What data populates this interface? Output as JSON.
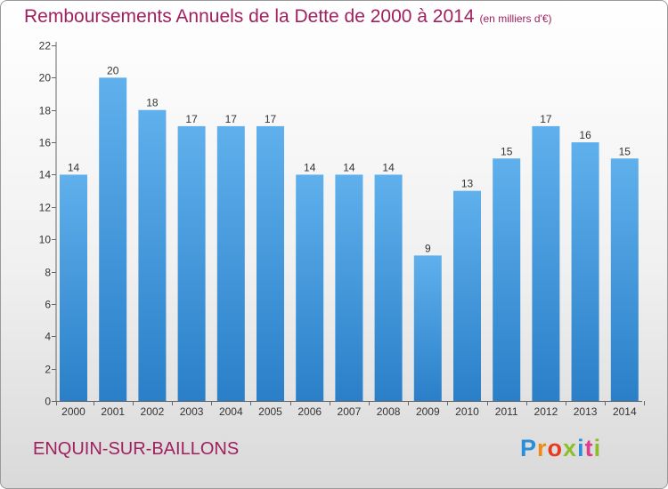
{
  "chart_data": {
    "type": "bar",
    "title": "Remboursements Annuels de la Dette de 2000 à 2014",
    "subtitle": "(en milliers d'€)",
    "categories": [
      "2000",
      "2001",
      "2002",
      "2003",
      "2004",
      "2005",
      "2006",
      "2007",
      "2008",
      "2009",
      "2010",
      "2011",
      "2012",
      "2013",
      "2014"
    ],
    "values": [
      14,
      20,
      18,
      17,
      17,
      17,
      14,
      14,
      14,
      9,
      13,
      15,
      17,
      16,
      15
    ],
    "y_ticks": [
      0,
      2,
      4,
      6,
      8,
      10,
      12,
      14,
      16,
      18,
      20,
      22
    ],
    "ylim": [
      0,
      22
    ],
    "xlabel": "",
    "ylabel": "",
    "grid": false,
    "bar_color_light": "#5fb0ec",
    "bar_color_dark": "#2a7fc8"
  },
  "location": "ENQUIN-SUR-BAILLONS",
  "logo": {
    "text": "Proxiti",
    "letter_colors": [
      "#2a8fd8",
      "#f08a10",
      "#e83a20",
      "#8abf28",
      "#2a8fd8",
      "#e03a8a",
      "#8abf28"
    ]
  },
  "title_color": "#a02060"
}
